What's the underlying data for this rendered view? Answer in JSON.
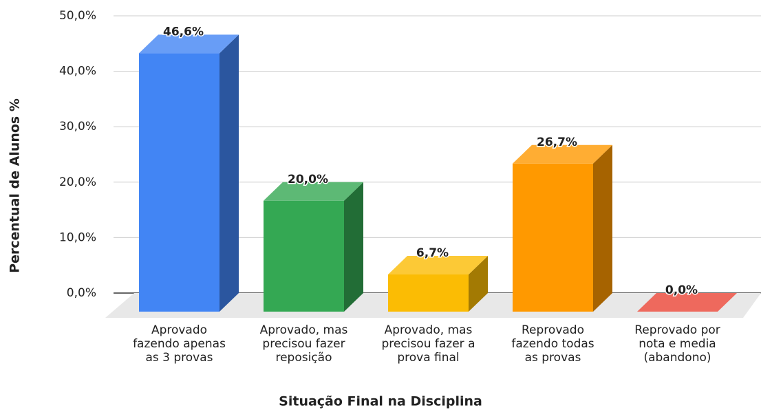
{
  "chart_data": {
    "type": "bar3d",
    "x_label": "Situação Final na Disciplina",
    "y_label": "Percentual de Alunos %",
    "categories": [
      "Aprovado\nfazendo apenas\nas 3 provas",
      "Aprovado, mas\nprecisou fazer\nreposição",
      "Aprovado, mas\nprecisou fazer a\nprova final",
      "Reprovado\nfazendo todas\nas provas",
      "Reprovado por\nnota e media\n(abandono)"
    ],
    "values": [
      46.6,
      20.0,
      6.7,
      26.7,
      0.0
    ],
    "value_labels": [
      "46,6%",
      "20,0%",
      "6,7%",
      "26,7%",
      "0,0%"
    ],
    "colors": [
      "#4285f4",
      "#34a853",
      "#fbbc04",
      "#ff9900",
      "#ea4335"
    ],
    "ylim": [
      0,
      50
    ],
    "yticks": [
      {
        "value": 0,
        "label": "0,0%"
      },
      {
        "value": 10,
        "label": "10,0%"
      },
      {
        "value": 20,
        "label": "20,0%"
      },
      {
        "value": 30,
        "label": "30,0%"
      },
      {
        "value": 40,
        "label": "40,0%"
      },
      {
        "value": 50,
        "label": "50,0%"
      }
    ],
    "grid": true
  }
}
